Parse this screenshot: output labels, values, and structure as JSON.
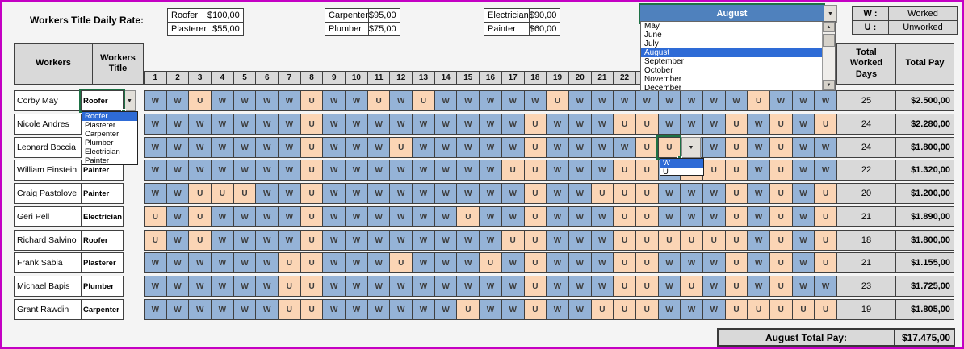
{
  "icons": {
    "dropdown_arrow": "▼",
    "scroll_up": "▲",
    "scroll_down": "▼"
  },
  "header": {
    "rates_label": "Workers Title Daily Rate:",
    "rates": [
      {
        "title": "Roofer",
        "rate": "$100,00"
      },
      {
        "title": "Plasterer",
        "rate": "$55,00"
      },
      {
        "title": "Carpenter",
        "rate": "$95,00"
      },
      {
        "title": "Plumber",
        "rate": "$75,00"
      },
      {
        "title": "Electrician",
        "rate": "$90,00"
      },
      {
        "title": "Painter",
        "rate": "$60,00"
      }
    ],
    "month_combo": {
      "value": "August",
      "options": [
        "May",
        "June",
        "July",
        "August",
        "September",
        "October",
        "November",
        "December"
      ],
      "selected": "August"
    },
    "legend": [
      {
        "key": "W :",
        "value": "Worked"
      },
      {
        "key": "U :",
        "value": "Unworked"
      }
    ]
  },
  "table": {
    "workers_header": "Workers",
    "title_header": "Workers Title",
    "day_numbers": [
      1,
      2,
      3,
      4,
      5,
      6,
      7,
      8,
      9,
      10,
      11,
      12,
      13,
      14,
      15,
      16,
      17,
      18,
      19,
      20,
      21,
      22,
      23,
      24,
      25,
      26,
      27,
      28,
      29,
      30,
      31
    ],
    "total_days_header": "Total Worked Days",
    "total_pay_header": "Total Pay",
    "rows": [
      {
        "name": "Corby May",
        "title": "Roofer",
        "days": "WWUWWWWUWWUWUWWWWWUWWWWWWWWUWWW",
        "total_days": "25",
        "total_pay": "$2.500,00"
      },
      {
        "name": "Nicole Andres",
        "title": "",
        "days": "WWWWWWWUWWWWWWWWWUWWWUUWWWUWUWU",
        "total_days": "24",
        "total_pay": "$2.280,00"
      },
      {
        "name": "Leonard Boccia",
        "title": "",
        "days": "WWWWWWWUWWWUWWWWWUWWWWUUWWUWUWW",
        "total_days": "24",
        "total_pay": "$1.800,00"
      },
      {
        "name": "William Einstein",
        "title": "Painter",
        "days": "WWWWWWWUWWWWWWWWUUWWWUUWUUUWUWW",
        "total_days": "22",
        "total_pay": "$1.320,00"
      },
      {
        "name": "Craig Pastolove",
        "title": "Painter",
        "days": "WWUUUWWUWWWWWWWWWUWWUUUWWWUWUWU",
        "total_days": "20",
        "total_pay": "$1.200,00"
      },
      {
        "name": "Geri Pell",
        "title": "Electrician",
        "days": "UWUWWWWUWWWWWWUWWUWWWUUWWWUWUWU",
        "total_days": "21",
        "total_pay": "$1.890,00"
      },
      {
        "name": "Richard Salvino",
        "title": "Roofer",
        "days": "UWUWWWWUWWWWWWWWUUWWWUUUUUUWUWU",
        "total_days": "18",
        "total_pay": "$1.800,00"
      },
      {
        "name": "Frank Sabia",
        "title": "Plasterer",
        "days": "WWWWWWUUWWWUWWWUWUWWWUUWWWUWUWU",
        "total_days": "21",
        "total_pay": "$1.155,00"
      },
      {
        "name": "Michael Bapis",
        "title": "Plumber",
        "days": "WWWWWWUUWWWWWWWWWUWWWUUWUWUWUWW",
        "total_days": "23",
        "total_pay": "$1.725,00"
      },
      {
        "name": "Grant Rawdin",
        "title": "Carpenter",
        "days": "WWWWWWUUWWWWWWUWWUWWUUUWWWUUUUU",
        "total_days": "19",
        "total_pay": "$1.805,00"
      }
    ]
  },
  "title_dropdown": {
    "options": [
      "Roofer",
      "Plasterer",
      "Carpenter",
      "Plumber",
      "Electrician",
      "Painter"
    ],
    "highlighted": "Roofer"
  },
  "wu_dropdown": {
    "options": [
      "W",
      "U"
    ],
    "highlighted": "W"
  },
  "footer": {
    "label": "August Total Pay:",
    "value": "$17.475,00"
  }
}
